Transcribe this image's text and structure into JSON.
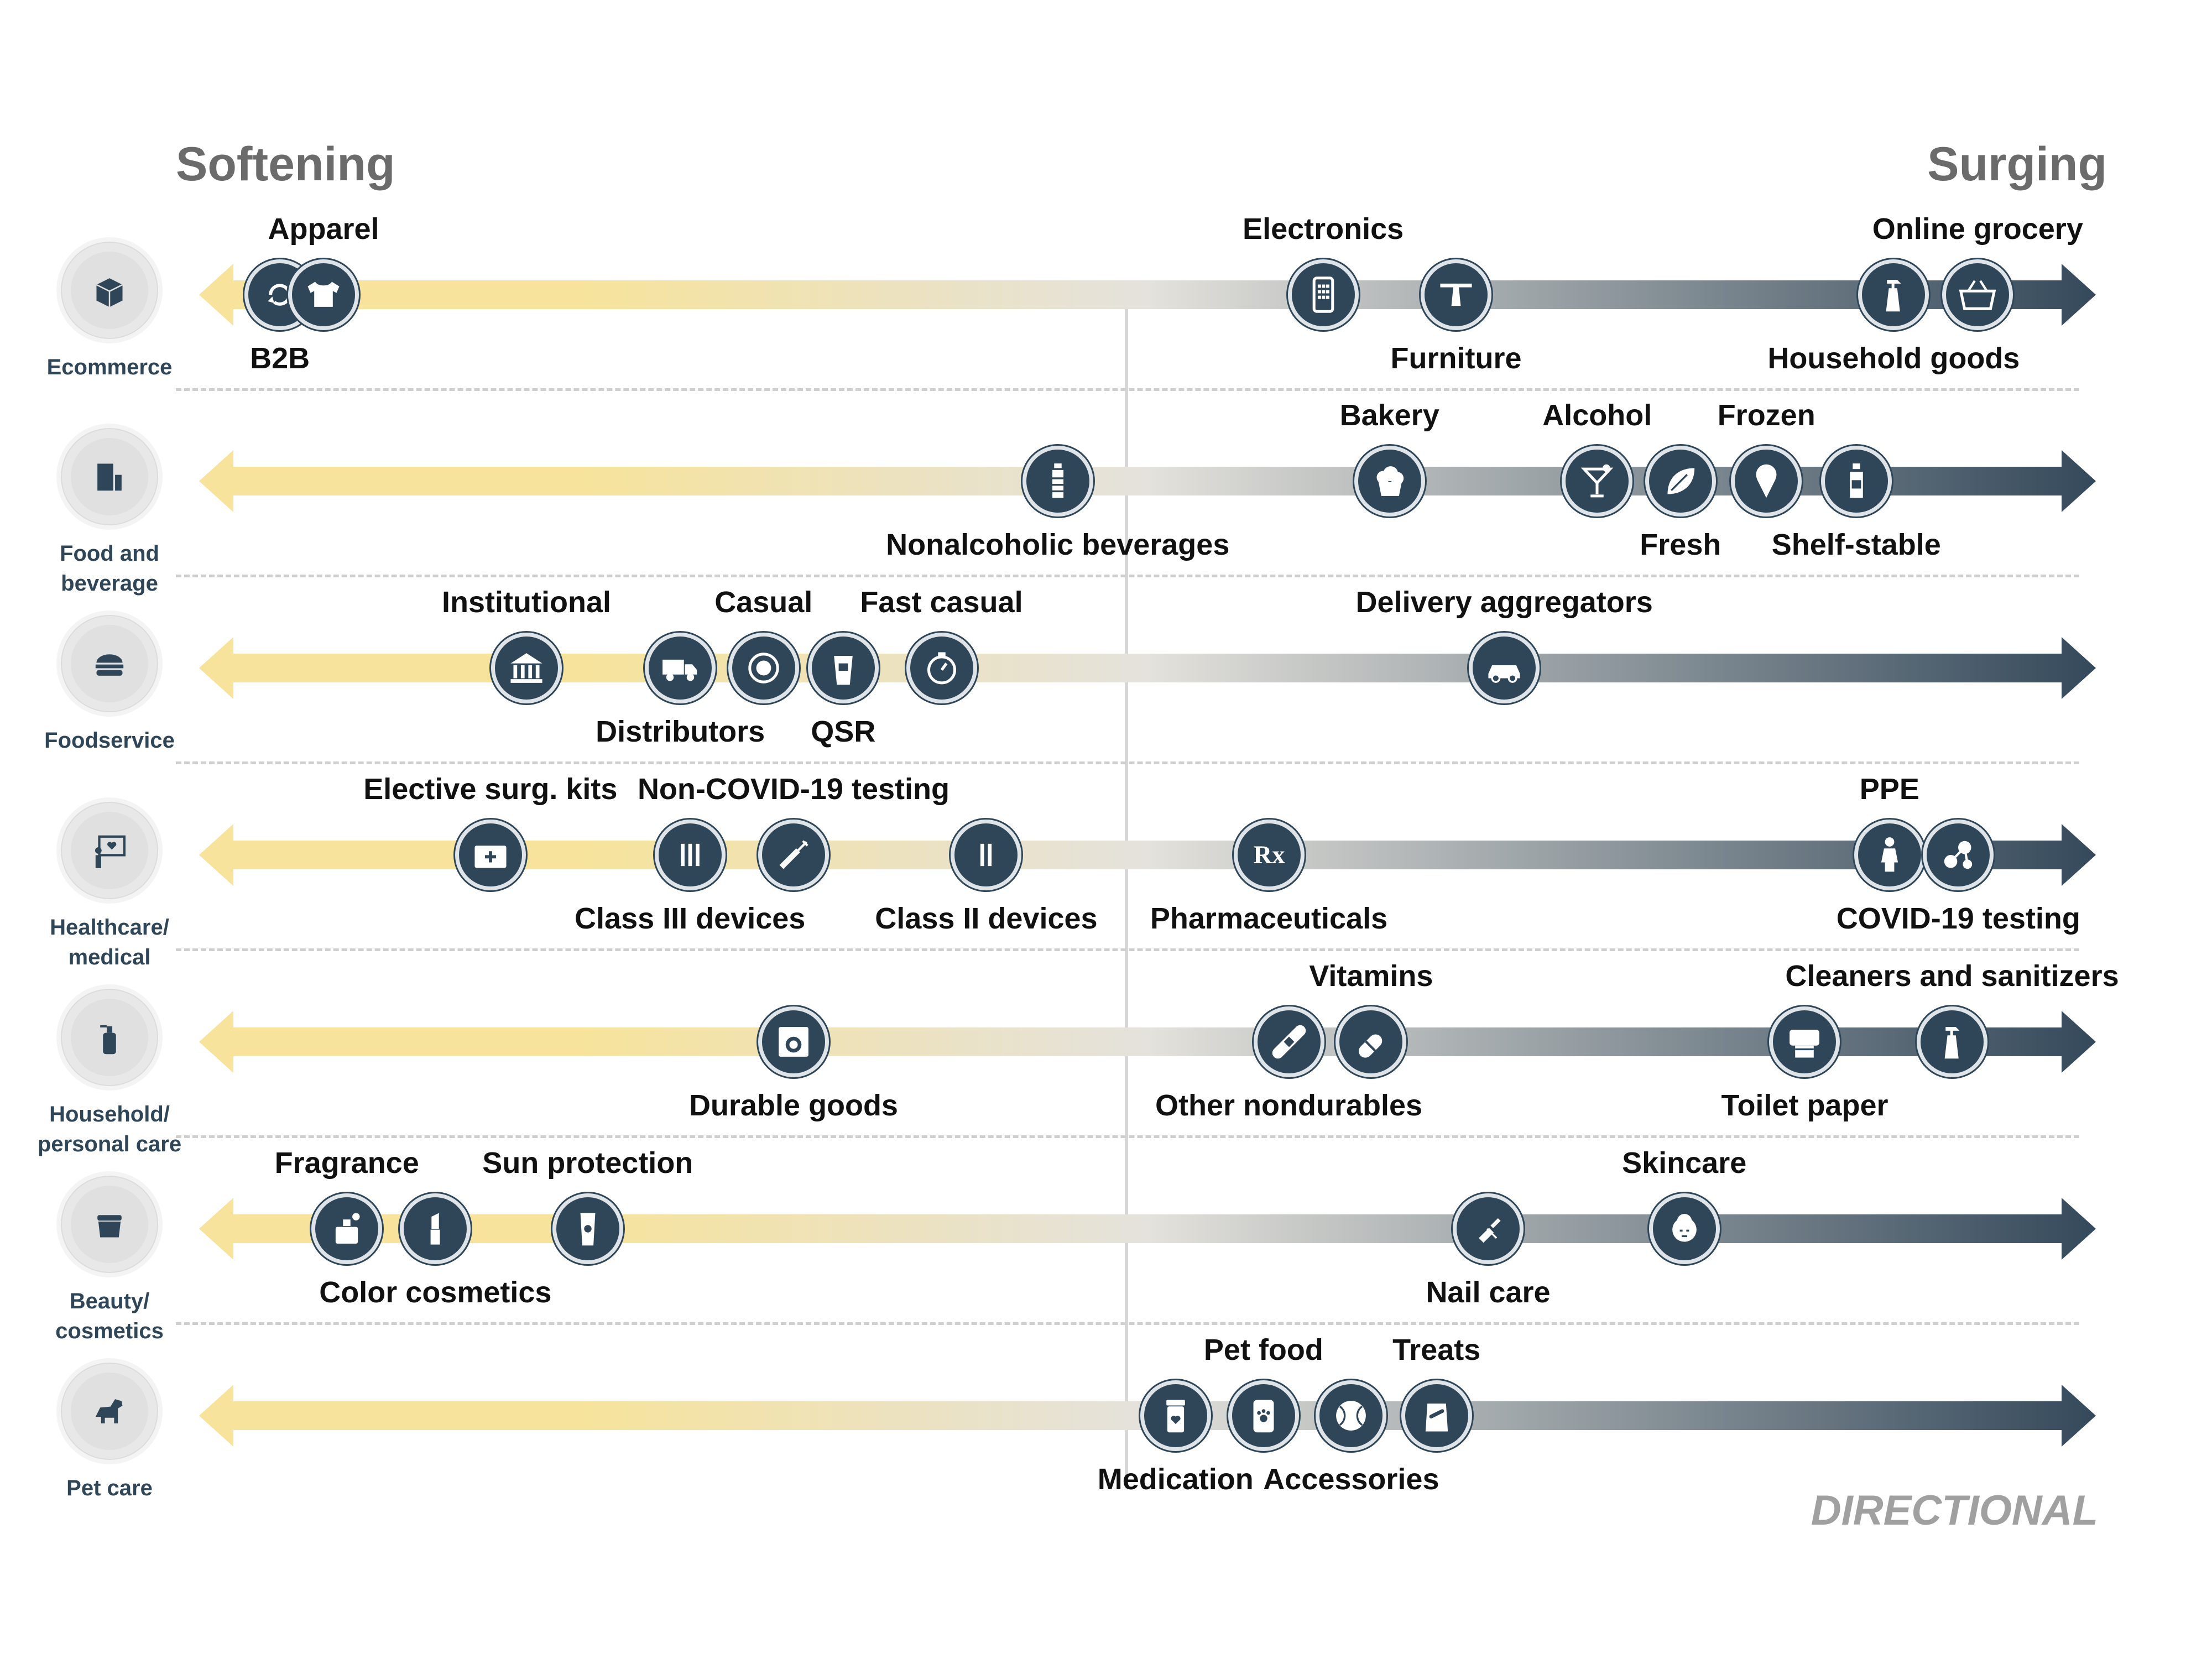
{
  "header": {
    "left_label": "Softening",
    "right_label": "Surging"
  },
  "footer": {
    "note": "DIRECTIONAL"
  },
  "colors": {
    "soft": "#f7e39b",
    "mid": "#e4e2dc",
    "surge": "#34495b",
    "label": "#2f4658"
  },
  "rows": [
    {
      "title": "Ecommerce",
      "icon": "package-icon",
      "items": [
        {
          "label": "B2B",
          "icon": "cycle-icon",
          "position": 0.0426,
          "label_pos": "below"
        },
        {
          "label": "Apparel",
          "icon": "shirt-icon",
          "position": 0.0656,
          "label_pos": "above"
        },
        {
          "label": "Electronics",
          "icon": "phone-icon",
          "position": 0.5926,
          "label_pos": "above"
        },
        {
          "label": "Furniture",
          "icon": "table-icon",
          "position": 0.6627,
          "label_pos": "below"
        },
        {
          "label": "Household goods",
          "icon": "spray-bottle-icon",
          "position": 0.8934,
          "label_pos": "below"
        },
        {
          "label": "Online grocery",
          "icon": "basket-icon",
          "position": 0.9377,
          "label_pos": "above"
        }
      ]
    },
    {
      "title": "Food and beverage",
      "icon": "groceries-icon",
      "items": [
        {
          "label": "Nonalcoholic beverages",
          "icon": "bottle-icon",
          "position": 0.4527,
          "label_pos": "below"
        },
        {
          "label": "Bakery",
          "icon": "muffin-icon",
          "position": 0.6276,
          "label_pos": "above"
        },
        {
          "label": "Alcohol",
          "icon": "cocktail-icon",
          "position": 0.7371,
          "label_pos": "above"
        },
        {
          "label": "Fresh",
          "icon": "leaf-icon",
          "position": 0.781,
          "label_pos": "below"
        },
        {
          "label": "Frozen",
          "icon": "ice-cream-icon",
          "position": 0.8263,
          "label_pos": "above"
        },
        {
          "label": "Shelf-stable",
          "icon": "jar-icon",
          "position": 0.8737,
          "label_pos": "below"
        }
      ]
    },
    {
      "title": "Foodservice",
      "icon": "burger-icon",
      "items": [
        {
          "label": "Institutional",
          "icon": "building-icon",
          "position": 0.1726,
          "label_pos": "above"
        },
        {
          "label": "Distributors",
          "icon": "truck-icon",
          "position": 0.2537,
          "label_pos": "below"
        },
        {
          "label": "Casual",
          "icon": "plate-icon",
          "position": 0.2976,
          "label_pos": "above"
        },
        {
          "label": "QSR",
          "icon": "cup-icon",
          "position": 0.3396,
          "label_pos": "below"
        },
        {
          "label": "Fast casual",
          "icon": "timer-icon",
          "position": 0.3914,
          "label_pos": "above"
        },
        {
          "label": "Delivery aggregators",
          "icon": "car-icon",
          "position": 0.6881,
          "label_pos": "above"
        }
      ]
    },
    {
      "title": "Healthcare/ medical",
      "icon": "presentation-icon",
      "items": [
        {
          "label": "Elective surg. kits",
          "icon": "medical-kit-icon",
          "position": 0.1536,
          "label_pos": "above"
        },
        {
          "label": "Class III devices",
          "icon": "class-three-icon",
          "position": 0.2588,
          "label_pos": "below"
        },
        {
          "label": "Non-COVID-19 testing",
          "icon": "syringe-icon",
          "position": 0.3134,
          "label_pos": "above"
        },
        {
          "label": "Class II devices",
          "icon": "class-two-icon",
          "position": 0.415,
          "label_pos": "below"
        },
        {
          "label": "Pharmaceuticals",
          "icon": "rx-icon",
          "position": 0.564,
          "label_pos": "below"
        },
        {
          "label": "PPE",
          "icon": "person-icon",
          "position": 0.8912,
          "label_pos": "above"
        },
        {
          "label": "COVID-19 testing",
          "icon": "molecule-icon",
          "position": 0.9275,
          "label_pos": "below"
        }
      ]
    },
    {
      "title": "Household/ personal care",
      "icon": "soap-dispenser-icon",
      "items": [
        {
          "label": "Durable goods",
          "icon": "washer-icon",
          "position": 0.3134,
          "label_pos": "below"
        },
        {
          "label": "Other nondurables",
          "icon": "bandage-icon",
          "position": 0.5745,
          "label_pos": "below"
        },
        {
          "label": "Vitamins",
          "icon": "capsule-icon",
          "position": 0.6179,
          "label_pos": "above"
        },
        {
          "label": "Toilet paper",
          "icon": "toilet-paper-icon",
          "position": 0.8465,
          "label_pos": "below"
        },
        {
          "label": "Cleaners and sanitizers",
          "icon": "spray-bottle-icon",
          "position": 0.9242,
          "label_pos": "above"
        }
      ]
    },
    {
      "title": "Beauty/ cosmetics",
      "icon": "cream-jar-icon",
      "items": [
        {
          "label": "Fragrance",
          "icon": "perfume-icon",
          "position": 0.0779,
          "label_pos": "above"
        },
        {
          "label": "Color cosmetics",
          "icon": "lipstick-icon",
          "position": 0.1246,
          "label_pos": "below"
        },
        {
          "label": "Sun protection",
          "icon": "sunscreen-icon",
          "position": 0.2049,
          "label_pos": "above"
        },
        {
          "label": "Nail care",
          "icon": "nail-polish-icon",
          "position": 0.6796,
          "label_pos": "below"
        },
        {
          "label": "Skincare",
          "icon": "face-mask-icon",
          "position": 0.783,
          "label_pos": "above"
        }
      ]
    },
    {
      "title": "Pet care",
      "icon": "dog-icon",
      "items": [
        {
          "label": "Medication",
          "icon": "pill-bottle-icon",
          "position": 0.5148,
          "label_pos": "below"
        },
        {
          "label": "Pet food",
          "icon": "pet-food-icon",
          "position": 0.5612,
          "label_pos": "above"
        },
        {
          "label": "Accessories",
          "icon": "ball-icon",
          "position": 0.6074,
          "label_pos": "below"
        },
        {
          "label": "Treats",
          "icon": "treats-bag-icon",
          "position": 0.6524,
          "label_pos": "above"
        }
      ]
    }
  ]
}
